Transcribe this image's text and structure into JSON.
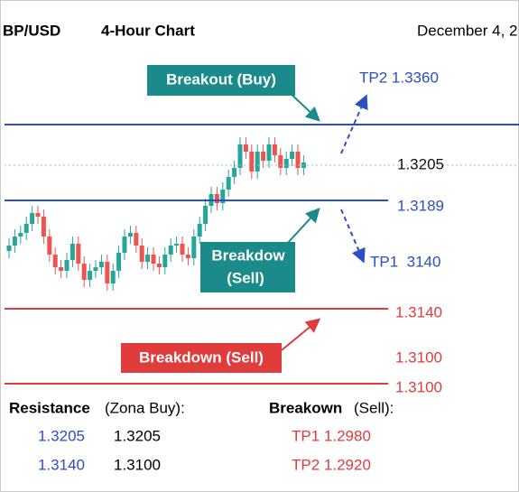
{
  "header": {
    "pair": "BP/USD",
    "timeframe": "4-Hour Chart",
    "date": "December 4, 2"
  },
  "levels": {
    "tp2": "TP2 1.3360",
    "current": "1.3205",
    "support": "1.3189",
    "tp1": "TP1  3140",
    "red1": "1.3140",
    "red2": "1.3100",
    "red3": "1.3100"
  },
  "annotations": {
    "breakout": "Breakout (Buy)",
    "breakdown_teal": [
      "Breakdow",
      "(Sell)"
    ],
    "breakdown_red": "Breakdown (Sell)"
  },
  "table": {
    "left": {
      "title": "Resistance",
      "subtitle": "(Zona Buy):",
      "rows": [
        [
          "1.3205",
          "1.3205"
        ],
        [
          "1.3140",
          "1.3100"
        ]
      ]
    },
    "right": {
      "title": "Breakown",
      "subtitle": "(Sell):",
      "rows": [
        "TP1 1.2980",
        "TP2 1.2920"
      ]
    }
  }
}
